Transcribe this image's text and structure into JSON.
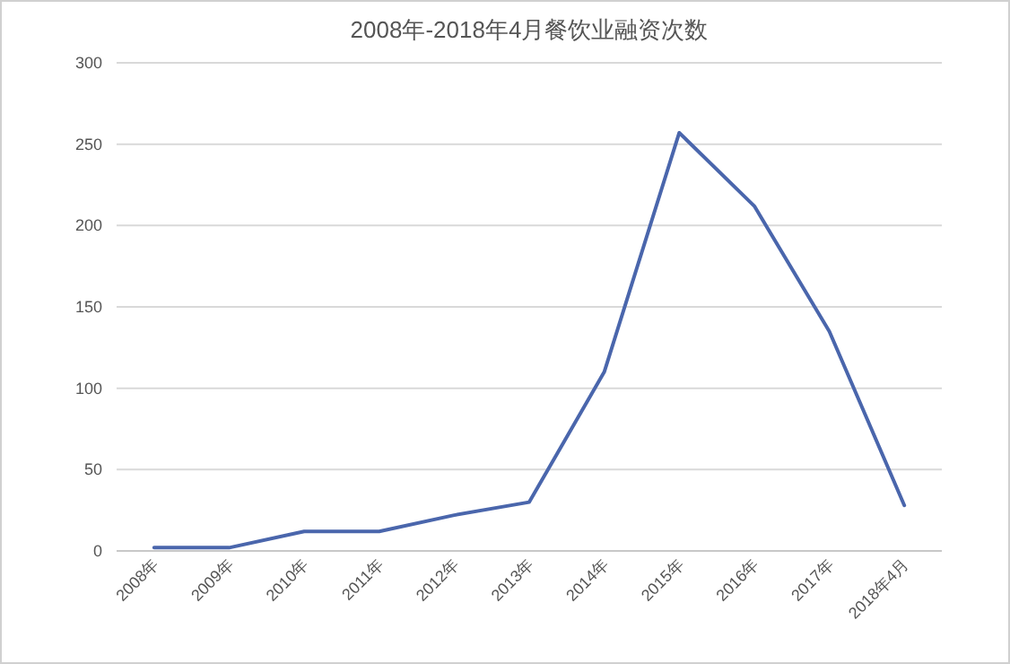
{
  "chart_data": {
    "type": "line",
    "title": "2008年-2018年4月餐饮业融资次数",
    "categories": [
      "2008年",
      "2009年",
      "2010年",
      "2011年",
      "2012年",
      "2013年",
      "2014年",
      "2015年",
      "2016年",
      "2017年",
      "2018年4月"
    ],
    "series": [
      {
        "color": "#4a66ac",
        "values": [
          2,
          2,
          12,
          12,
          22,
          30,
          110,
          257,
          212,
          135,
          28
        ]
      }
    ],
    "ylim": [
      0,
      300
    ],
    "yticks": [
      0,
      50,
      100,
      150,
      200,
      250,
      300
    ],
    "grid": "y",
    "marker": "none",
    "line_style": "solid"
  }
}
